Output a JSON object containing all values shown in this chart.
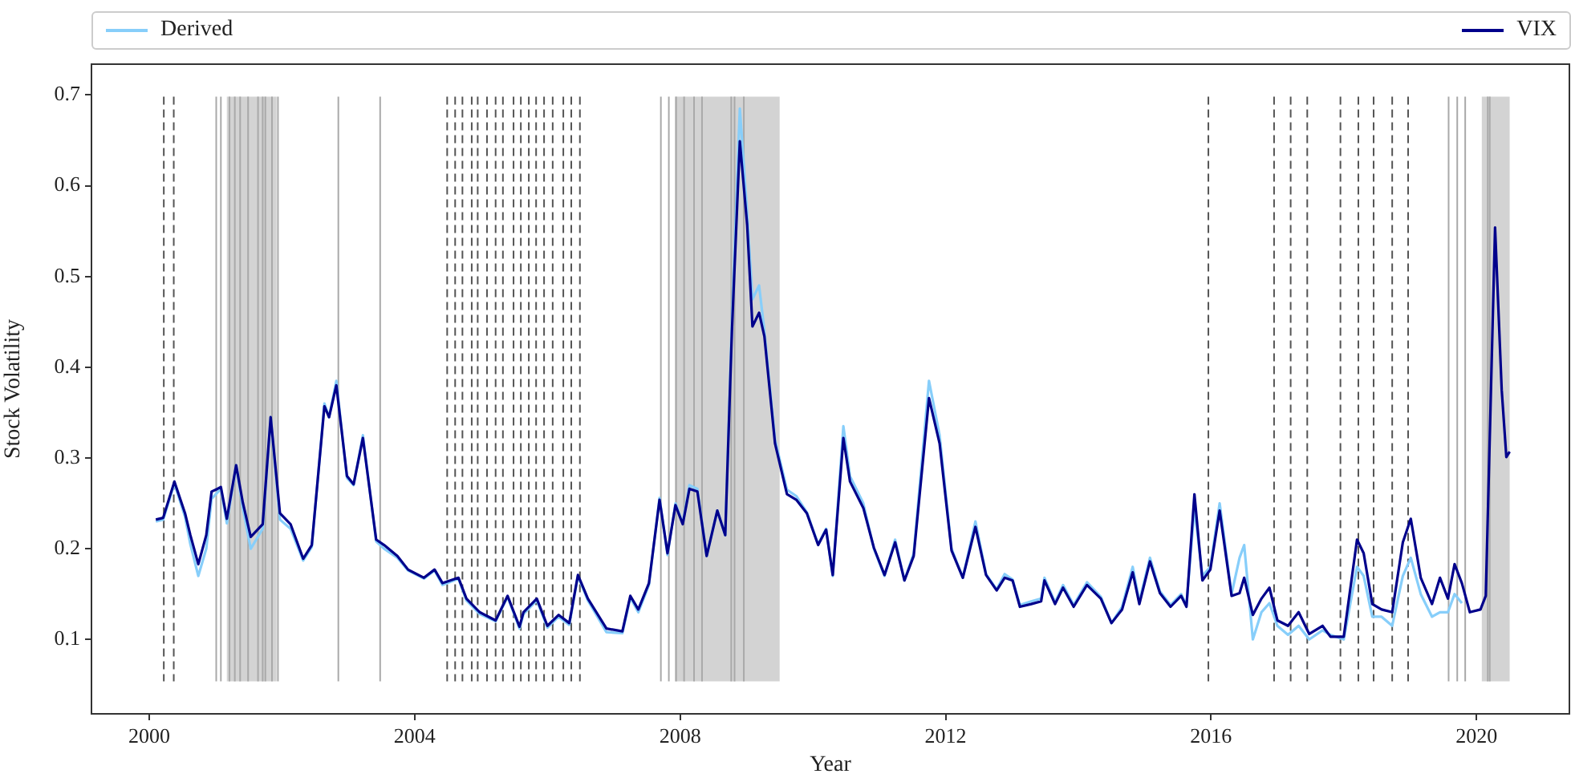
{
  "chart_data": {
    "type": "line",
    "xlabel": "Year",
    "ylabel": "Stock Volatility",
    "xlim": [
      1999.13,
      2021.4
    ],
    "ylim": [
      0.018,
      0.734
    ],
    "xticks": [
      {
        "value": 2000,
        "label": "2000"
      },
      {
        "value": 2004,
        "label": "2004"
      },
      {
        "value": 2008,
        "label": "2008"
      },
      {
        "value": 2012,
        "label": "2012"
      },
      {
        "value": 2016,
        "label": "2016"
      },
      {
        "value": 2020,
        "label": "2020"
      }
    ],
    "yticks": [
      0.1,
      0.2,
      0.3,
      0.4,
      0.5,
      0.6,
      0.7
    ],
    "grid": false,
    "legend": "top",
    "marker": "none",
    "line_style": "solid",
    "x": [
      2000.1,
      2000.21,
      2000.38,
      2000.54,
      2000.62,
      2000.74,
      2000.86,
      2000.94,
      2001.03,
      2001.08,
      2001.17,
      2001.31,
      2001.41,
      2001.53,
      2001.71,
      2001.83,
      2001.97,
      2002.13,
      2002.32,
      2002.45,
      2002.64,
      2002.71,
      2002.82,
      2002.98,
      2003.08,
      2003.22,
      2003.42,
      2003.54,
      2003.74,
      2003.9,
      2004.14,
      2004.3,
      2004.42,
      2004.66,
      2004.78,
      2004.98,
      2005.22,
      2005.4,
      2005.58,
      2005.64,
      2005.84,
      2006.0,
      2006.17,
      2006.33,
      2006.46,
      2006.61,
      2006.89,
      2007.13,
      2007.25,
      2007.37,
      2007.53,
      2007.69,
      2007.81,
      2007.93,
      2008.04,
      2008.14,
      2008.26,
      2008.4,
      2008.56,
      2008.68,
      2008.78,
      2008.9,
      2009.01,
      2009.09,
      2009.19,
      2009.27,
      2009.43,
      2009.61,
      2009.75,
      2009.91,
      2010.08,
      2010.2,
      2010.3,
      2010.46,
      2010.56,
      2010.76,
      2010.92,
      2011.08,
      2011.24,
      2011.38,
      2011.52,
      2011.75,
      2011.91,
      2012.09,
      2012.26,
      2012.45,
      2012.61,
      2012.77,
      2012.89,
      2013.01,
      2013.12,
      2013.29,
      2013.44,
      2013.49,
      2013.65,
      2013.77,
      2013.93,
      2014.13,
      2014.34,
      2014.5,
      2014.66,
      2014.82,
      2014.92,
      2015.08,
      2015.23,
      2015.39,
      2015.55,
      2015.63,
      2015.75,
      2015.87,
      2015.99,
      2016.13,
      2016.31,
      2016.43,
      2016.5,
      2016.63,
      2016.76,
      2016.88,
      2017.0,
      2017.16,
      2017.32,
      2017.48,
      2017.68,
      2017.8,
      2018.0,
      2018.2,
      2018.3,
      2018.43,
      2018.57,
      2018.73,
      2018.89,
      2019.01,
      2019.16,
      2019.33,
      2019.45,
      2019.57,
      2019.67,
      2019.78,
      2019.9,
      2020.06,
      2020.14,
      2020.28,
      2020.38,
      2020.45,
      2020.5
    ],
    "series": [
      {
        "name": "Derived",
        "color": "#87cefa",
        "values": [
          0.23,
          0.232,
          0.272,
          0.235,
          0.205,
          0.17,
          0.2,
          0.255,
          0.262,
          0.266,
          0.228,
          0.292,
          0.245,
          0.2,
          0.222,
          0.345,
          0.232,
          0.222,
          0.187,
          0.202,
          0.36,
          0.345,
          0.385,
          0.278,
          0.27,
          0.325,
          0.208,
          0.2,
          0.19,
          0.176,
          0.167,
          0.176,
          0.16,
          0.167,
          0.143,
          0.128,
          0.12,
          0.147,
          0.112,
          0.128,
          0.143,
          0.113,
          0.125,
          0.116,
          0.17,
          0.143,
          0.108,
          0.107,
          0.146,
          0.13,
          0.16,
          0.256,
          0.193,
          0.25,
          0.228,
          0.27,
          0.266,
          0.192,
          0.242,
          0.215,
          0.45,
          0.685,
          0.57,
          0.475,
          0.49,
          0.44,
          0.32,
          0.265,
          0.258,
          0.24,
          0.205,
          0.222,
          0.17,
          0.335,
          0.28,
          0.25,
          0.2,
          0.17,
          0.21,
          0.165,
          0.195,
          0.385,
          0.325,
          0.2,
          0.168,
          0.23,
          0.172,
          0.155,
          0.172,
          0.166,
          0.138,
          0.142,
          0.145,
          0.168,
          0.141,
          0.16,
          0.138,
          0.163,
          0.147,
          0.118,
          0.136,
          0.18,
          0.142,
          0.19,
          0.153,
          0.138,
          0.15,
          0.138,
          0.245,
          0.17,
          0.18,
          0.25,
          0.15,
          0.19,
          0.204,
          0.1,
          0.13,
          0.14,
          0.115,
          0.105,
          0.115,
          0.1,
          0.11,
          0.105,
          0.1,
          0.18,
          0.17,
          0.125,
          0.125,
          0.115,
          0.17,
          0.19,
          0.15,
          0.125,
          0.13,
          0.13,
          0.15,
          0.14,
          null,
          null,
          null,
          null,
          null,
          null,
          null
        ]
      },
      {
        "name": "VIX",
        "color": "#00008b",
        "values": [
          0.232,
          0.234,
          0.274,
          0.239,
          0.215,
          0.183,
          0.215,
          0.263,
          0.266,
          0.268,
          0.233,
          0.292,
          0.251,
          0.213,
          0.227,
          0.345,
          0.239,
          0.227,
          0.189,
          0.204,
          0.357,
          0.345,
          0.38,
          0.28,
          0.271,
          0.322,
          0.21,
          0.204,
          0.192,
          0.177,
          0.168,
          0.177,
          0.162,
          0.168,
          0.145,
          0.13,
          0.121,
          0.148,
          0.114,
          0.13,
          0.145,
          0.115,
          0.127,
          0.118,
          0.171,
          0.145,
          0.112,
          0.109,
          0.148,
          0.133,
          0.162,
          0.254,
          0.195,
          0.248,
          0.227,
          0.266,
          0.263,
          0.192,
          0.242,
          0.215,
          0.439,
          0.649,
          0.557,
          0.445,
          0.46,
          0.434,
          0.316,
          0.26,
          0.254,
          0.239,
          0.204,
          0.221,
          0.171,
          0.322,
          0.274,
          0.245,
          0.201,
          0.171,
          0.207,
          0.165,
          0.192,
          0.366,
          0.316,
          0.198,
          0.168,
          0.224,
          0.171,
          0.154,
          0.168,
          0.165,
          0.136,
          0.139,
          0.142,
          0.165,
          0.139,
          0.157,
          0.136,
          0.16,
          0.145,
          0.118,
          0.133,
          0.174,
          0.139,
          0.186,
          0.151,
          0.136,
          0.148,
          0.136,
          0.26,
          0.165,
          0.177,
          0.242,
          0.148,
          0.151,
          0.168,
          0.127,
          0.145,
          0.157,
          0.121,
          0.115,
          0.13,
          0.106,
          0.115,
          0.103,
          0.103,
          0.21,
          0.195,
          0.139,
          0.133,
          0.13,
          0.207,
          0.233,
          0.168,
          0.139,
          0.168,
          0.145,
          0.183,
          0.162,
          0.13,
          0.133,
          0.148,
          0.554,
          0.375,
          0.301,
          0.307
        ]
      }
    ],
    "bands": [
      {
        "axis": "x",
        "from": 2001.17,
        "to": 2001.92,
        "color": "#d3d3d3"
      },
      {
        "axis": "x",
        "from": 2007.92,
        "to": 2009.5,
        "color": "#d3d3d3"
      },
      {
        "axis": "x",
        "from": 2020.08,
        "to": 2020.5,
        "color": "#d3d3d3"
      }
    ],
    "ref_lines": [
      {
        "axis": "x",
        "value": 2000.22,
        "line_style": "dashed",
        "color": "#555555"
      },
      {
        "axis": "x",
        "value": 2000.37,
        "line_style": "dashed",
        "color": "#555555"
      },
      {
        "axis": "x",
        "value": 2004.49,
        "line_style": "dashed",
        "color": "#555555"
      },
      {
        "axis": "x",
        "value": 2004.61,
        "line_style": "dashed",
        "color": "#555555"
      },
      {
        "axis": "x",
        "value": 2004.72,
        "line_style": "dashed",
        "color": "#555555"
      },
      {
        "axis": "x",
        "value": 2004.86,
        "line_style": "dashed",
        "color": "#555555"
      },
      {
        "axis": "x",
        "value": 2004.95,
        "line_style": "dashed",
        "color": "#555555"
      },
      {
        "axis": "x",
        "value": 2005.09,
        "line_style": "dashed",
        "color": "#555555"
      },
      {
        "axis": "x",
        "value": 2005.22,
        "line_style": "dashed",
        "color": "#555555"
      },
      {
        "axis": "x",
        "value": 2005.33,
        "line_style": "dashed",
        "color": "#555555"
      },
      {
        "axis": "x",
        "value": 2005.49,
        "line_style": "dashed",
        "color": "#555555"
      },
      {
        "axis": "x",
        "value": 2005.6,
        "line_style": "dashed",
        "color": "#555555"
      },
      {
        "axis": "x",
        "value": 2005.72,
        "line_style": "dashed",
        "color": "#555555"
      },
      {
        "axis": "x",
        "value": 2005.83,
        "line_style": "dashed",
        "color": "#555555"
      },
      {
        "axis": "x",
        "value": 2005.95,
        "line_style": "dashed",
        "color": "#555555"
      },
      {
        "axis": "x",
        "value": 2006.08,
        "line_style": "dashed",
        "color": "#555555"
      },
      {
        "axis": "x",
        "value": 2006.24,
        "line_style": "dashed",
        "color": "#555555"
      },
      {
        "axis": "x",
        "value": 2006.36,
        "line_style": "dashed",
        "color": "#555555"
      },
      {
        "axis": "x",
        "value": 2006.49,
        "line_style": "dashed",
        "color": "#555555"
      },
      {
        "axis": "x",
        "value": 2015.96,
        "line_style": "dashed",
        "color": "#555555"
      },
      {
        "axis": "x",
        "value": 2016.95,
        "line_style": "dashed",
        "color": "#555555"
      },
      {
        "axis": "x",
        "value": 2017.2,
        "line_style": "dashed",
        "color": "#555555"
      },
      {
        "axis": "x",
        "value": 2017.45,
        "line_style": "dashed",
        "color": "#555555"
      },
      {
        "axis": "x",
        "value": 2017.95,
        "line_style": "dashed",
        "color": "#555555"
      },
      {
        "axis": "x",
        "value": 2018.22,
        "line_style": "dashed",
        "color": "#555555"
      },
      {
        "axis": "x",
        "value": 2018.45,
        "line_style": "dashed",
        "color": "#555555"
      },
      {
        "axis": "x",
        "value": 2018.73,
        "line_style": "dashed",
        "color": "#555555"
      },
      {
        "axis": "x",
        "value": 2018.97,
        "line_style": "dashed",
        "color": "#555555"
      },
      {
        "axis": "x",
        "value": 2001.01,
        "line_style": "solid",
        "color": "#a9a9a9"
      },
      {
        "axis": "x",
        "value": 2001.08,
        "line_style": "solid",
        "color": "#a9a9a9"
      },
      {
        "axis": "x",
        "value": 2001.21,
        "line_style": "solid",
        "color": "#a9a9a9"
      },
      {
        "axis": "x",
        "value": 2001.29,
        "line_style": "solid",
        "color": "#a9a9a9"
      },
      {
        "axis": "x",
        "value": 2001.37,
        "line_style": "solid",
        "color": "#a9a9a9"
      },
      {
        "axis": "x",
        "value": 2001.49,
        "line_style": "solid",
        "color": "#a9a9a9"
      },
      {
        "axis": "x",
        "value": 2001.64,
        "line_style": "solid",
        "color": "#a9a9a9"
      },
      {
        "axis": "x",
        "value": 2001.71,
        "line_style": "solid",
        "color": "#a9a9a9"
      },
      {
        "axis": "x",
        "value": 2001.75,
        "line_style": "solid",
        "color": "#a9a9a9"
      },
      {
        "axis": "x",
        "value": 2001.85,
        "line_style": "solid",
        "color": "#a9a9a9"
      },
      {
        "axis": "x",
        "value": 2001.94,
        "line_style": "solid",
        "color": "#a9a9a9"
      },
      {
        "axis": "x",
        "value": 2002.85,
        "line_style": "solid",
        "color": "#a9a9a9"
      },
      {
        "axis": "x",
        "value": 2003.48,
        "line_style": "solid",
        "color": "#a9a9a9"
      },
      {
        "axis": "x",
        "value": 2007.71,
        "line_style": "solid",
        "color": "#a9a9a9"
      },
      {
        "axis": "x",
        "value": 2007.83,
        "line_style": "solid",
        "color": "#a9a9a9"
      },
      {
        "axis": "x",
        "value": 2007.94,
        "line_style": "solid",
        "color": "#a9a9a9"
      },
      {
        "axis": "x",
        "value": 2008.06,
        "line_style": "solid",
        "color": "#a9a9a9"
      },
      {
        "axis": "x",
        "value": 2008.21,
        "line_style": "solid",
        "color": "#a9a9a9"
      },
      {
        "axis": "x",
        "value": 2008.33,
        "line_style": "solid",
        "color": "#a9a9a9"
      },
      {
        "axis": "x",
        "value": 2008.77,
        "line_style": "solid",
        "color": "#a9a9a9"
      },
      {
        "axis": "x",
        "value": 2008.82,
        "line_style": "solid",
        "color": "#a9a9a9"
      },
      {
        "axis": "x",
        "value": 2008.96,
        "line_style": "solid",
        "color": "#a9a9a9"
      },
      {
        "axis": "x",
        "value": 2019.58,
        "line_style": "solid",
        "color": "#a9a9a9"
      },
      {
        "axis": "x",
        "value": 2019.71,
        "line_style": "solid",
        "color": "#a9a9a9"
      },
      {
        "axis": "x",
        "value": 2019.83,
        "line_style": "solid",
        "color": "#a9a9a9"
      },
      {
        "axis": "x",
        "value": 2020.17,
        "line_style": "solid",
        "color": "#a9a9a9"
      },
      {
        "axis": "x",
        "value": 2020.2,
        "line_style": "solid",
        "color": "#a9a9a9"
      }
    ]
  }
}
